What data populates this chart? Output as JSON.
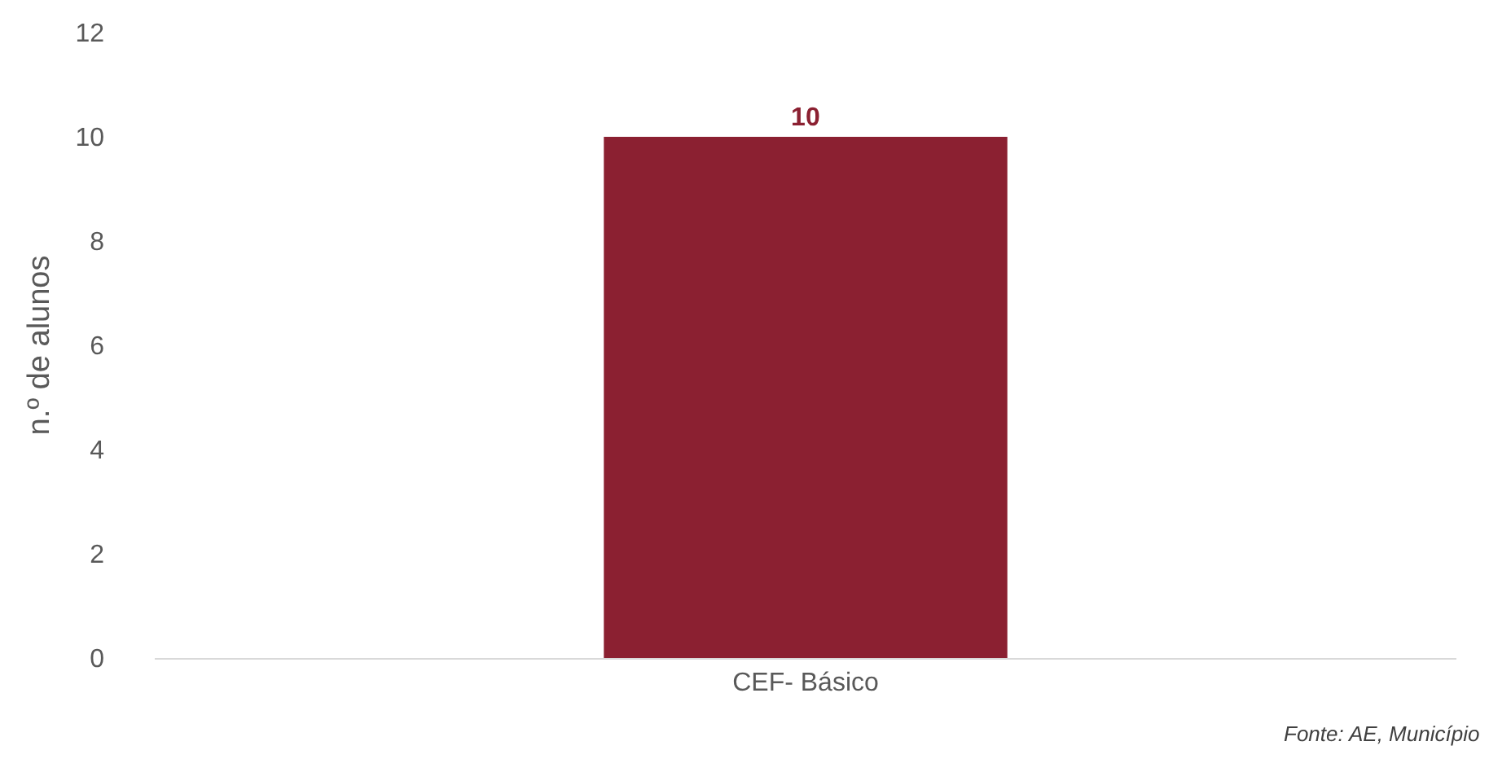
{
  "chart_data": {
    "type": "bar",
    "ylabel": "n.º de alunos",
    "categories": [
      "CEF- Básico"
    ],
    "values": [
      10
    ],
    "color": "#8b2031",
    "ylim": [
      0,
      12
    ],
    "yticks": [
      0,
      2,
      4,
      6,
      8,
      10,
      12
    ],
    "grid": false,
    "data_labels": true,
    "annotations": [
      "Fonte: AE, Município"
    ]
  }
}
